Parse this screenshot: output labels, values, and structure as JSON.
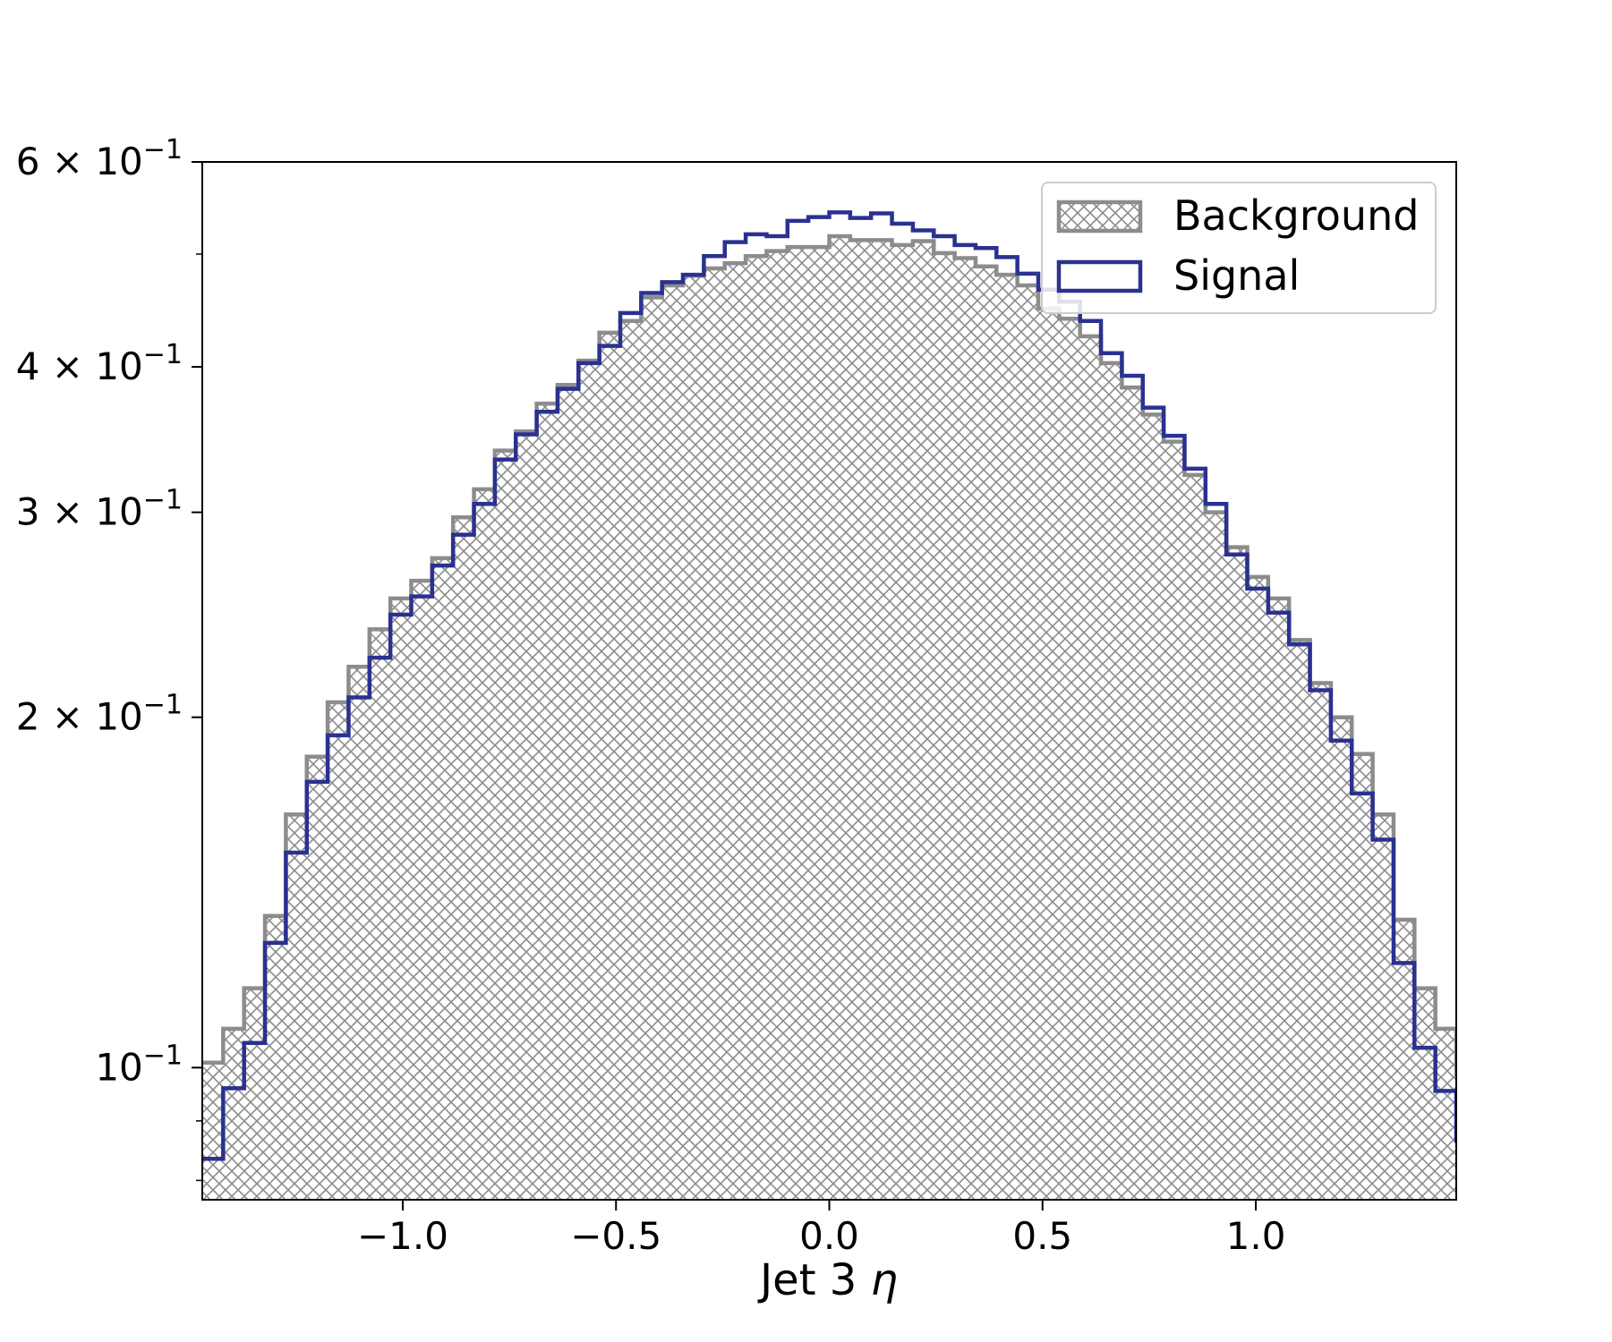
{
  "chart_data": {
    "type": "histogram",
    "xlabel": "Jet 3",
    "xlabel_symbol": "η",
    "ylabel": "",
    "yscale": "log",
    "xlim": [
      -1.47,
      1.47
    ],
    "ylim": [
      0.077,
      0.6
    ],
    "bin_edges_start": -1.47,
    "bin_width": 0.049,
    "x_ticks": [
      -1.0,
      -0.5,
      0.0,
      0.5,
      1.0
    ],
    "x_tick_labels": [
      "−1.0",
      "−0.5",
      "0.0",
      "0.5",
      "1.0"
    ],
    "y_ticks": [
      {
        "value": 0.6,
        "mantissa": "6",
        "sep": " × ",
        "base": "10",
        "exp": "−1"
      },
      {
        "value": 0.4,
        "mantissa": "4",
        "sep": " × ",
        "base": "10",
        "exp": "−1"
      },
      {
        "value": 0.3,
        "mantissa": "3",
        "sep": " × ",
        "base": "10",
        "exp": "−1"
      },
      {
        "value": 0.2,
        "mantissa": "2",
        "sep": " × ",
        "base": "10",
        "exp": "−1"
      },
      {
        "value": 0.1,
        "mantissa": "",
        "sep": "",
        "base": "10",
        "exp": "−1"
      }
    ],
    "legend_position": "upper right",
    "series": [
      {
        "name": "Background",
        "style": "hatched",
        "color": "#8c8c8c",
        "values": [
          0.101,
          0.108,
          0.117,
          0.135,
          0.165,
          0.185,
          0.206,
          0.221,
          0.238,
          0.253,
          0.262,
          0.274,
          0.297,
          0.314,
          0.339,
          0.352,
          0.372,
          0.386,
          0.405,
          0.428,
          0.438,
          0.459,
          0.47,
          0.479,
          0.486,
          0.491,
          0.498,
          0.503,
          0.507,
          0.507,
          0.518,
          0.514,
          0.514,
          0.509,
          0.513,
          0.501,
          0.496,
          0.488,
          0.48,
          0.47,
          0.449,
          0.44,
          0.425,
          0.403,
          0.384,
          0.364,
          0.345,
          0.323,
          0.3,
          0.28,
          0.264,
          0.253,
          0.233,
          0.214,
          0.2,
          0.186,
          0.165,
          0.134,
          0.117,
          0.108,
          0.099
        ]
      },
      {
        "name": "Signal",
        "style": "step",
        "color": "#2a3190",
        "values": [
          0.0835,
          0.096,
          0.105,
          0.128,
          0.153,
          0.176,
          0.193,
          0.208,
          0.225,
          0.245,
          0.254,
          0.27,
          0.287,
          0.305,
          0.333,
          0.35,
          0.366,
          0.383,
          0.403,
          0.417,
          0.445,
          0.463,
          0.473,
          0.48,
          0.498,
          0.512,
          0.52,
          0.518,
          0.534,
          0.538,
          0.543,
          0.537,
          0.542,
          0.531,
          0.524,
          0.518,
          0.509,
          0.506,
          0.497,
          0.481,
          0.466,
          0.455,
          0.438,
          0.411,
          0.393,
          0.369,
          0.349,
          0.327,
          0.305,
          0.276,
          0.258,
          0.246,
          0.231,
          0.211,
          0.191,
          0.172,
          0.157,
          0.123,
          0.104,
          0.0955,
          0.0865
        ]
      }
    ]
  }
}
